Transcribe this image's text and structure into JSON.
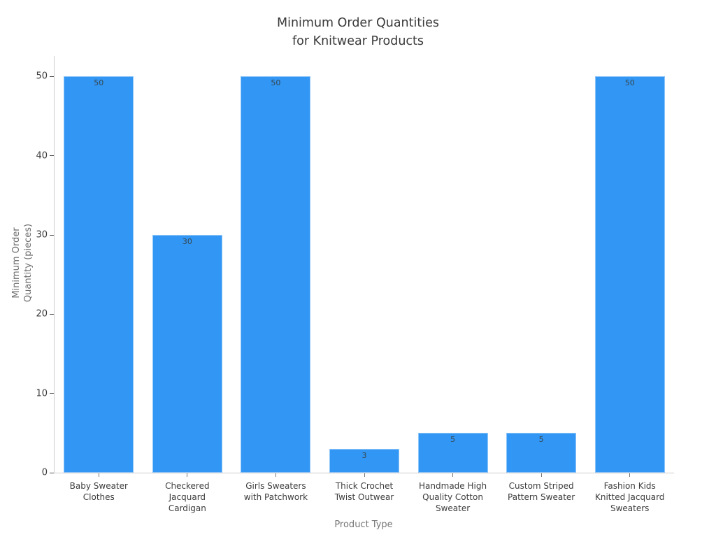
{
  "chart_data": {
    "type": "bar",
    "title": "Minimum Order Quantities\nfor Knitwear Products",
    "xlabel": "Product Type",
    "ylabel": "Minimum Order\nQuantity (pieces)",
    "categories": [
      "Baby Sweater\nClothes",
      "Checkered\nJacquard\nCardigan",
      "Girls Sweaters\nwith Patchwork",
      "Thick Crochet\nTwist Outwear",
      "Handmade High\nQuality Cotton\nSweater",
      "Custom Striped\nPattern Sweater",
      "Fashion Kids\nKnitted Jacquard\nSweaters"
    ],
    "values": [
      50,
      30,
      50,
      3,
      5,
      5,
      50
    ],
    "yticks": [
      0,
      10,
      20,
      30,
      40,
      50
    ],
    "ylim": [
      0,
      52.6
    ],
    "grid": false,
    "legend": null,
    "bar_labels_visible": true,
    "colors": {
      "bar": "#3196f4",
      "bar_edge": "rgba(255,255,255,0.45)",
      "title_text": "#3a3a3a",
      "tick_text": "#3b3b3b",
      "axis_label_text": "#757575",
      "bar_label_text": "#37474f",
      "spine": "#cccccc",
      "background": "#ffffff"
    }
  }
}
